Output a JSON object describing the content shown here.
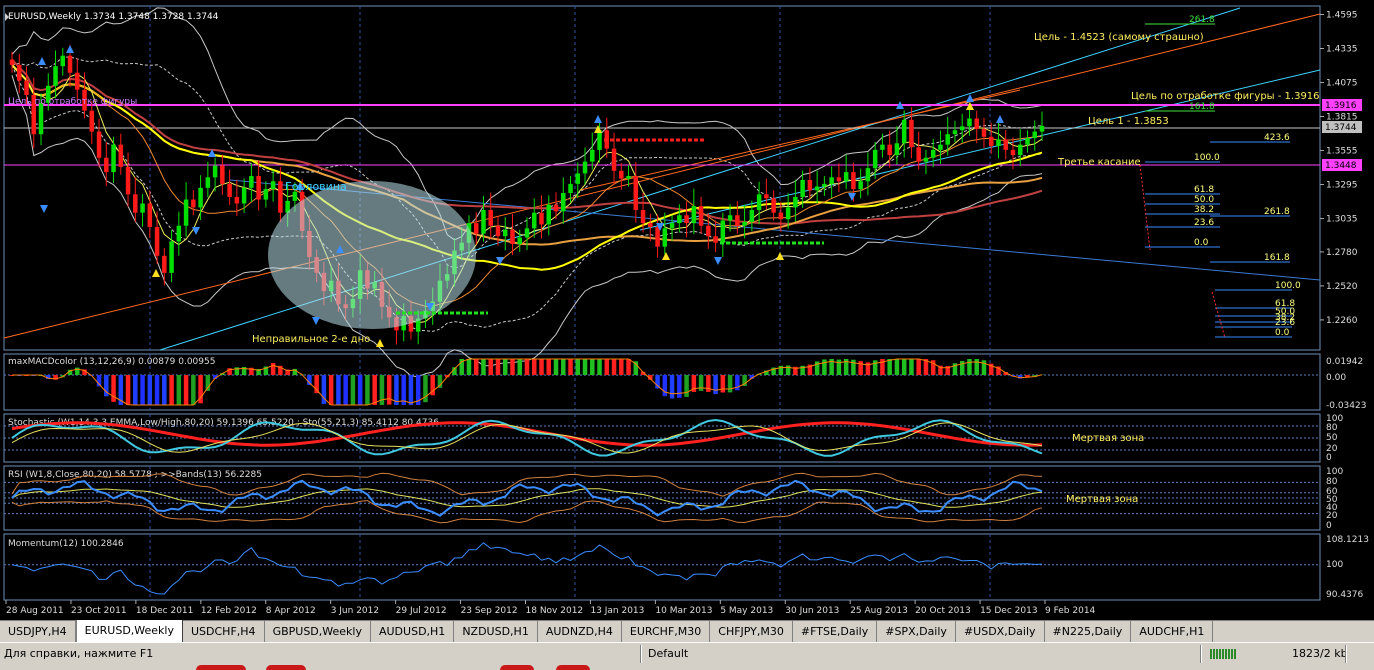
{
  "chart_data": {
    "type": "candlestick",
    "title": "EURUSD,Weekly",
    "ohlc_label": "1.3734 1.3748 1.3728 1.3744",
    "price_ticks": [
      "1.4595",
      "1.4335",
      "1.4075",
      "1.3815",
      "1.3555",
      "1.3295",
      "1.3035",
      "1.2780",
      "1.2520",
      "1.2260"
    ],
    "price_range": [
      1.203,
      1.466
    ],
    "current_price": "1.3744",
    "level_labels": [
      "1.3916",
      "1.3448"
    ],
    "date_ticks": [
      "28 Aug 2011",
      "23 Oct 2011",
      "18 Dec 2011",
      "12 Feb 2012",
      "8 Apr 2012",
      "3 Jun 2012",
      "29 Jul 2012",
      "23 Sep 2012",
      "18 Nov 2012",
      "13 Jan 2013",
      "10 Mar 2013",
      "5 May 2013",
      "30 Jun 2013",
      "25 Aug 2013",
      "20 Oct 2013",
      "15 Dec 2013",
      "9 Feb 2014"
    ],
    "closes": [
      1.421,
      1.409,
      1.398,
      1.368,
      1.392,
      1.405,
      1.42,
      1.428,
      1.415,
      1.402,
      1.386,
      1.37,
      1.35,
      1.339,
      1.36,
      1.343,
      1.322,
      1.308,
      1.315,
      1.297,
      1.275,
      1.262,
      1.286,
      1.298,
      1.318,
      1.312,
      1.327,
      1.335,
      1.344,
      1.33,
      1.32,
      1.315,
      1.327,
      1.336,
      1.318,
      1.326,
      1.332,
      1.308,
      1.317,
      1.324,
      1.294,
      1.274,
      1.262,
      1.248,
      1.256,
      1.238,
      1.235,
      1.242,
      1.264,
      1.25,
      1.255,
      1.236,
      1.228,
      1.218,
      1.229,
      1.217,
      1.227,
      1.233,
      1.24,
      1.256,
      1.261,
      1.279,
      1.285,
      1.3,
      1.292,
      1.31,
      1.298,
      1.29,
      1.295,
      1.284,
      1.289,
      1.296,
      1.308,
      1.299,
      1.314,
      1.309,
      1.323,
      1.33,
      1.338,
      1.347,
      1.356,
      1.371,
      1.357,
      1.34,
      1.334,
      1.336,
      1.31,
      1.3,
      1.297,
      1.282,
      1.296,
      1.3,
      1.306,
      1.3,
      1.313,
      1.298,
      1.29,
      1.285,
      1.302,
      1.306,
      1.298,
      1.301,
      1.31,
      1.322,
      1.319,
      1.308,
      1.303,
      1.312,
      1.32,
      1.333,
      1.325,
      1.328,
      1.33,
      1.335,
      1.332,
      1.339,
      1.326,
      1.332,
      1.342,
      1.356,
      1.36,
      1.352,
      1.361,
      1.379,
      1.358,
      1.347,
      1.35,
      1.356,
      1.36,
      1.368,
      1.371,
      1.374,
      1.38,
      1.372,
      1.366,
      1.359,
      1.364,
      1.356,
      1.352,
      1.36,
      1.365,
      1.37,
      1.3744
    ],
    "annotations": [
      "Цель - 1.4523 (самому страшно)",
      "Цель по отработке фигуры - 1.3916",
      "Цель 1 - 1.3853",
      "Третье касание",
      "Горловина",
      "Неправильное 2-е дно",
      "Цель по отработке фигуры"
    ],
    "fib_upper": [
      "261.8",
      "161.8",
      "423.6",
      "100.0",
      "61.8",
      "50.0",
      "38.2",
      "23.6",
      "0.0",
      "261.8",
      "161.8"
    ],
    "fib_lower": [
      "100.0",
      "61.8",
      "50.0",
      "38.2",
      "23.6",
      "0.0"
    ],
    "indicators": [
      {
        "name": "maxMACDcolor (13,12,26,9) 0.00879 0.00955",
        "ticks": [
          "0.01942",
          "0.00",
          "-0.03423"
        ]
      },
      {
        "name": "Stochastic (W1,14,3,3,EMMA,Low/High,80,20) 59.1396 65.5220 ; Sto(55,21,3) 85.4112 80.4736",
        "ticks": [
          "100",
          "80",
          "50",
          "20",
          "0"
        ],
        "label": "Мертвая зона"
      },
      {
        "name": "RSI (W1,8,Close,80,20) 58.5778 ; >>Bands(13) 56.2285",
        "ticks": [
          "100",
          "80",
          "60",
          "50",
          "40",
          "20",
          "0"
        ],
        "label": "Мертвая зона"
      },
      {
        "name": "Momentum(12) 100.2846",
        "ticks": [
          "108.1213",
          "100",
          "90.4376"
        ]
      }
    ],
    "colors": {
      "bull": "#00e000",
      "bear": "#ff1a1a",
      "magenta": "#ff40ff",
      "cyan": "#3fd2ff",
      "orange": "#ff6a20",
      "yellow": "#ffff00",
      "tan": "#e8a040",
      "blue_rsi": "#3b8cff"
    }
  },
  "tabs": [
    "USDJPY,H4",
    "EURUSD,Weekly",
    "USDCHF,H4",
    "GBPUSD,Weekly",
    "AUDUSD,H1",
    "NZDUSD,H1",
    "AUDNZD,H4",
    "EURCHF,M30",
    "CHFJPY,M30",
    "#FTSE,Daily",
    "#SPX,Daily",
    "#USDX,Daily",
    "#N225,Daily",
    "AUDCHF,H1"
  ],
  "active_tab": 1,
  "status": {
    "help": "Для справки, нажмите F1",
    "profile": "Default",
    "traffic": "1823/2 kb"
  }
}
